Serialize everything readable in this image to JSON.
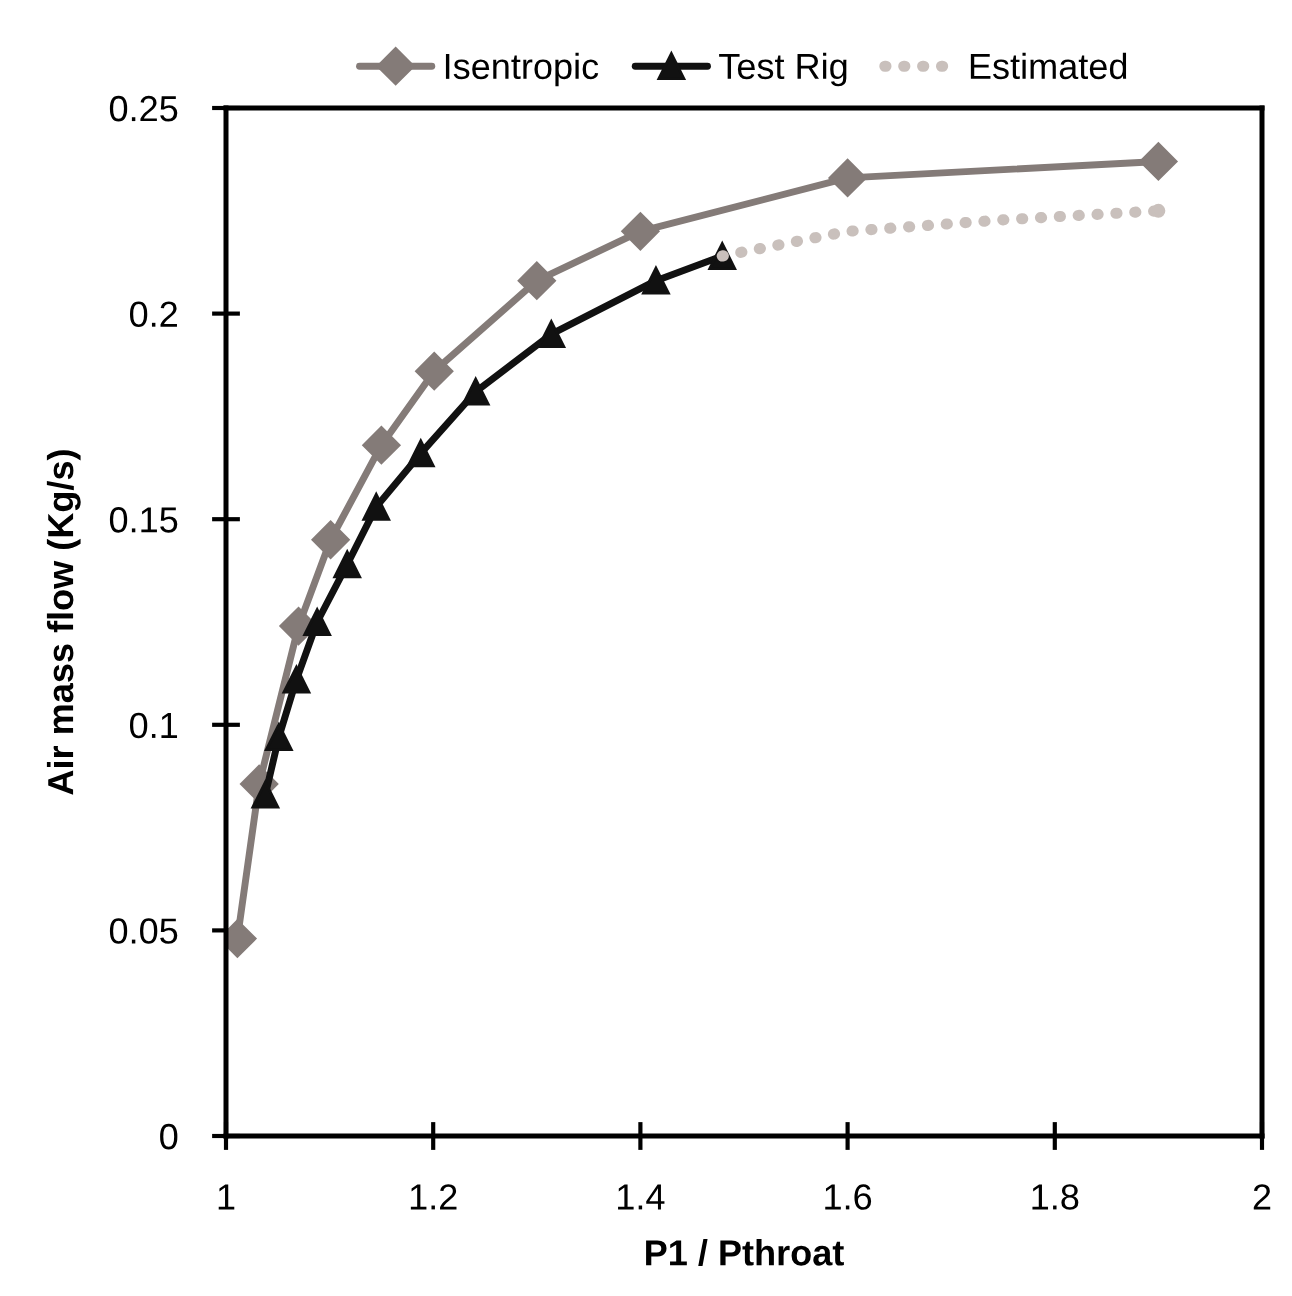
{
  "chart_data": {
    "type": "line",
    "xlabel": "P1 / Pthroat",
    "ylabel": "Air mass flow (Kg/s)",
    "xlim": [
      1,
      2
    ],
    "xticks": [
      1,
      1.2,
      1.4,
      1.6,
      1.8,
      2
    ],
    "ylim": [
      0,
      0.25
    ],
    "yticks": [
      0,
      0.05,
      0.1,
      0.15,
      0.2,
      0.25
    ],
    "grid": false,
    "legend": "top",
    "series": [
      {
        "name": "Isentropic",
        "color": "#847b78",
        "marker": "diamond",
        "line_style": "solid",
        "x": [
          1.011,
          1.032,
          1.07,
          1.101,
          1.15,
          1.201,
          1.3,
          1.4,
          1.6,
          1.9
        ],
        "values": [
          0.048,
          0.0856,
          0.124,
          0.145,
          0.168,
          0.186,
          0.208,
          0.22,
          0.233,
          0.237
        ]
      },
      {
        "name": "Test Rig",
        "color": "#111111",
        "marker": "triangle",
        "line_style": "solid",
        "x": [
          1.038,
          1.051,
          1.068,
          1.088,
          1.117,
          1.145,
          1.188,
          1.241,
          1.314,
          1.415,
          1.479
        ],
        "values": [
          0.083,
          0.097,
          0.111,
          0.125,
          0.139,
          0.153,
          0.166,
          0.181,
          0.195,
          0.208,
          0.214
        ]
      },
      {
        "name": "Estimated",
        "color": "#c9c0bc",
        "marker": "none",
        "line_style": "dotted",
        "x": [
          1.479,
          1.6,
          1.75,
          1.9
        ],
        "values": [
          0.214,
          0.22,
          0.2228,
          0.225
        ]
      }
    ]
  }
}
